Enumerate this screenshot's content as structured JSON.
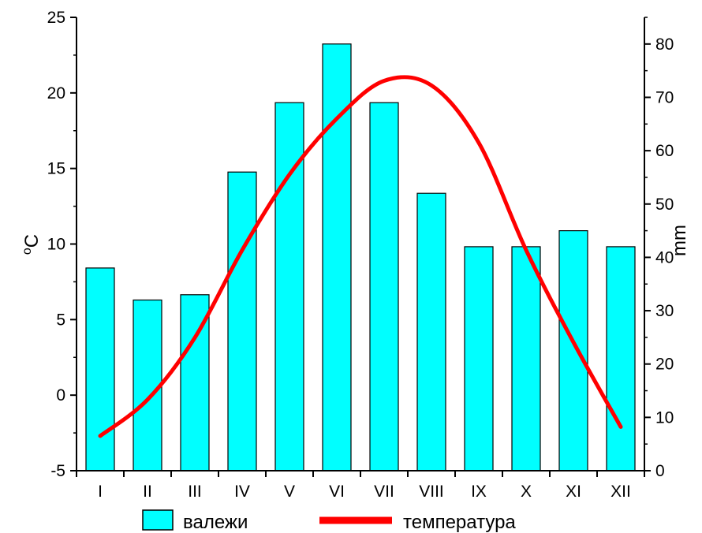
{
  "chart_data": {
    "type": "bar",
    "categories": [
      "I",
      "II",
      "III",
      "IV",
      "V",
      "VI",
      "VII",
      "VIII",
      "IX",
      "X",
      "XI",
      "XII"
    ],
    "series": [
      {
        "name": "валежи",
        "type": "bar",
        "axis": "right",
        "values": [
          38,
          32,
          33,
          56,
          69,
          80,
          69,
          52,
          42,
          42,
          45,
          42
        ]
      },
      {
        "name": "температура",
        "type": "line",
        "axis": "left",
        "values": [
          -2.7,
          -0.3,
          3.8,
          9.6,
          14.6,
          18.3,
          20.8,
          20.5,
          16.7,
          9.6,
          3.5,
          -2.1
        ]
      }
    ],
    "left_axis": {
      "label": "°C",
      "label_base": "C",
      "label_super": "o",
      "ylim": [
        -5,
        25
      ],
      "ticks": [
        "-5",
        "0",
        "5",
        "10",
        "15",
        "20",
        "25"
      ]
    },
    "right_axis": {
      "label": "mm",
      "ylim": [
        0,
        85
      ],
      "ticks": [
        "0",
        "10",
        "20",
        "30",
        "40",
        "50",
        "60",
        "70",
        "80"
      ]
    },
    "legend_position": "bottom",
    "grid": false,
    "colors": {
      "bar_fill": "#00FFFF",
      "bar_stroke": "#000000",
      "line": "#FF0000"
    }
  }
}
